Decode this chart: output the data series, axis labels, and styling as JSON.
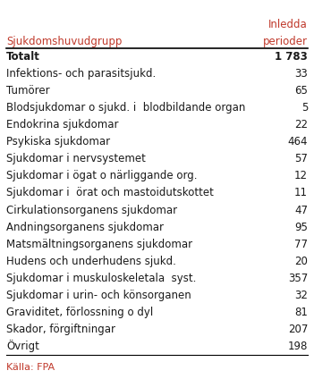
{
  "col1_header": "Sjukdomshuvudgrupp",
  "col2_header_line1": "Inledda",
  "col2_header_line2": "perioder",
  "rows": [
    [
      "Totalt",
      "1 783",
      true
    ],
    [
      "Infektions- och parasitsjukd.",
      "33",
      false
    ],
    [
      "Tumörer",
      "65",
      false
    ],
    [
      "Blodsjukdomar o sjukd. i  blodbildande organ",
      "5",
      false
    ],
    [
      "Endokrina sjukdomar",
      "22",
      false
    ],
    [
      "Psykiska sjukdomar",
      "464",
      false
    ],
    [
      "Sjukdomar i nervsystemet",
      "57",
      false
    ],
    [
      "Sjukdomar i ögat o närliggande org.",
      "12",
      false
    ],
    [
      "Sjukdomar i  örat och mastoidutskottet",
      "11",
      false
    ],
    [
      "Cirkulationsorganens sjukdomar",
      "47",
      false
    ],
    [
      "Andningsorganens sjukdomar",
      "95",
      false
    ],
    [
      "Matsmältningsorganens sjukdomar",
      "77",
      false
    ],
    [
      "Hudens och underhudens sjukd.",
      "20",
      false
    ],
    [
      "Sjukdomar i muskuloskeletala  syst.",
      "357",
      false
    ],
    [
      "Sjukdomar i urin- och könsorganen",
      "32",
      false
    ],
    [
      "Graviditet, förlossning o dyl",
      "81",
      false
    ],
    [
      "Skador, förgiftningar",
      "207",
      false
    ],
    [
      "Övrigt",
      "198",
      false
    ]
  ],
  "footer": "Källa: FPA",
  "bg_color": "#ffffff",
  "header_text_color": "#c0392b",
  "row_text_color": "#1a1a1a",
  "col1_header_color": "#c0392b",
  "separator_color": "#000000",
  "footer_color": "#c0392b",
  "font_size": 8.5,
  "header_font_size": 8.5
}
